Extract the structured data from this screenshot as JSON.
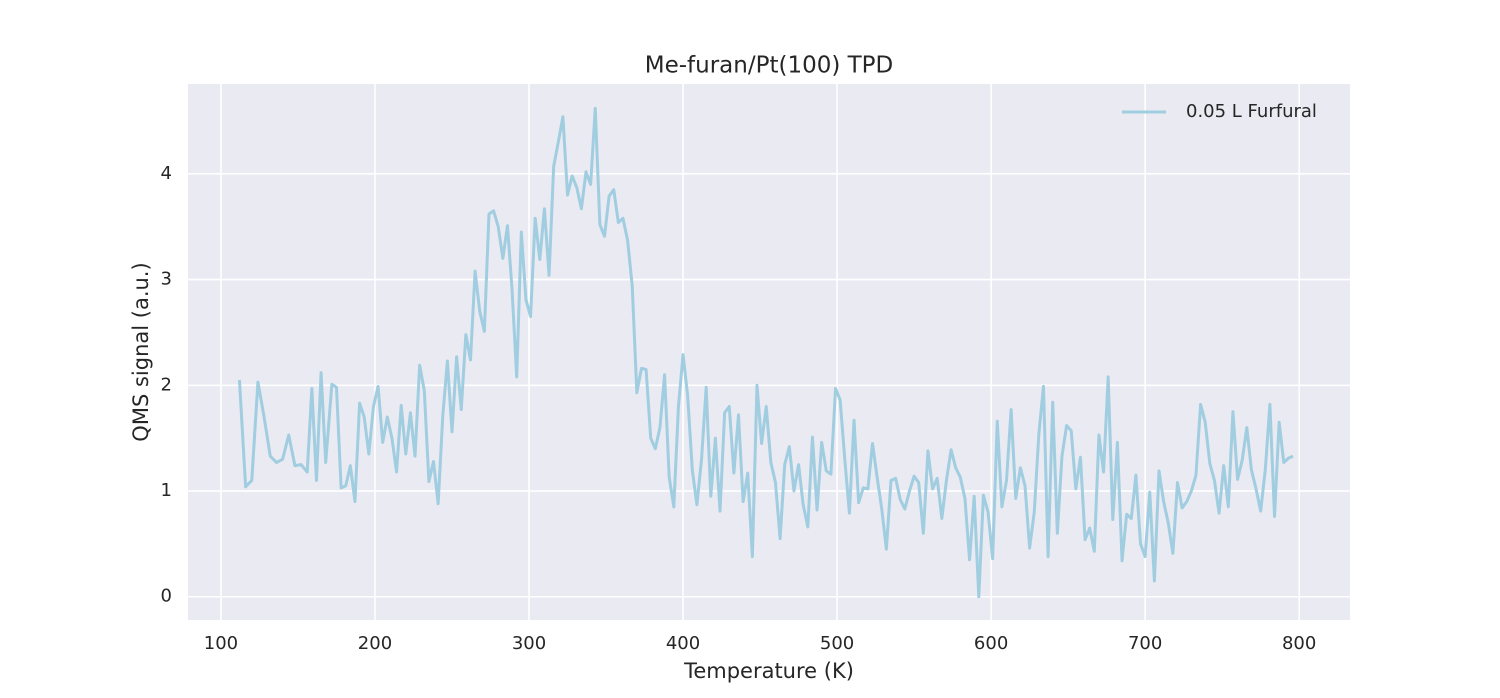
{
  "chart_data": {
    "type": "line",
    "title": "Me-furan/Pt(100) TPD",
    "xlabel": "Temperature (K)",
    "ylabel": "QMS signal (a.u.)",
    "x": [
      112,
      116,
      120,
      124,
      128,
      132,
      136,
      140,
      144,
      148,
      152,
      156,
      159,
      162,
      165,
      168,
      172,
      175,
      178,
      181,
      184,
      187,
      190,
      193,
      196,
      199,
      202,
      205,
      208,
      211,
      214,
      217,
      220,
      223,
      226,
      229,
      232,
      235,
      238,
      241,
      244,
      247,
      250,
      253,
      256,
      259,
      262,
      265,
      268,
      271,
      274,
      277,
      280,
      283,
      286,
      289,
      292,
      295,
      298,
      301,
      304,
      307,
      310,
      313,
      316,
      319,
      322,
      325,
      328,
      331,
      334,
      337,
      340,
      343,
      346,
      349,
      352,
      355,
      358,
      361,
      364,
      367,
      370,
      373,
      376,
      379,
      382,
      385,
      388,
      391,
      394,
      397,
      400,
      403,
      406,
      409,
      412,
      415,
      418,
      421,
      424,
      427,
      430,
      433,
      436,
      439,
      442,
      445,
      448,
      451,
      454,
      457,
      460,
      463,
      466,
      469,
      472,
      475,
      478,
      481,
      484,
      487,
      490,
      493,
      496,
      499,
      502,
      505,
      508,
      511,
      514,
      517,
      520,
      523,
      526,
      529,
      532,
      535,
      538,
      541,
      544,
      547,
      550,
      553,
      556,
      559,
      562,
      565,
      568,
      571,
      574,
      577,
      580,
      583,
      586,
      589,
      592,
      595,
      598,
      601,
      604,
      607,
      610,
      613,
      616,
      619,
      622,
      625,
      628,
      631,
      634,
      637,
      640,
      643,
      646,
      649,
      652,
      655,
      658,
      661,
      664,
      667,
      670,
      673,
      676,
      679,
      682,
      685,
      688,
      691,
      694,
      697,
      700,
      703,
      706,
      709,
      712,
      715,
      718,
      721,
      724,
      727,
      730,
      733,
      736,
      739,
      742,
      745,
      748,
      751,
      754,
      757,
      760,
      763,
      766,
      769,
      772,
      775,
      778,
      781,
      784,
      787,
      790,
      793,
      796
    ],
    "series": [
      {
        "name": "0.05 L Furfural",
        "color": "#a1cde0",
        "values": [
          2.05,
          1.04,
          1.1,
          2.03,
          1.7,
          1.33,
          1.27,
          1.3,
          1.53,
          1.24,
          1.25,
          1.18,
          1.97,
          1.1,
          2.12,
          1.27,
          2.01,
          1.98,
          1.03,
          1.05,
          1.24,
          0.9,
          1.83,
          1.7,
          1.35,
          1.8,
          1.99,
          1.46,
          1.7,
          1.5,
          1.18,
          1.81,
          1.35,
          1.74,
          1.33,
          2.19,
          1.95,
          1.09,
          1.28,
          0.88,
          1.71,
          2.23,
          1.56,
          2.27,
          1.77,
          2.48,
          2.24,
          3.08,
          2.7,
          2.51,
          3.62,
          3.65,
          3.5,
          3.2,
          3.51,
          2.9,
          2.08,
          3.45,
          2.81,
          2.65,
          3.58,
          3.19,
          3.67,
          3.04,
          4.07,
          4.3,
          4.54,
          3.8,
          3.98,
          3.87,
          3.67,
          4.02,
          3.9,
          4.62,
          3.52,
          3.41,
          3.79,
          3.85,
          3.54,
          3.58,
          3.37,
          2.94,
          1.93,
          2.16,
          2.15,
          1.5,
          1.4,
          1.6,
          2.1,
          1.13,
          0.85,
          1.8,
          2.29,
          1.9,
          1.2,
          0.87,
          1.3,
          1.98,
          0.95,
          1.5,
          0.81,
          1.74,
          1.8,
          1.17,
          1.72,
          0.9,
          1.17,
          0.38,
          2.0,
          1.45,
          1.8,
          1.27,
          1.08,
          0.55,
          1.25,
          1.42,
          1.0,
          1.25,
          0.87,
          0.66,
          1.51,
          0.82,
          1.46,
          1.19,
          1.16,
          1.97,
          1.86,
          1.3,
          0.79,
          1.67,
          0.89,
          1.03,
          1.02,
          1.45,
          1.13,
          0.83,
          0.45,
          1.1,
          1.12,
          0.92,
          0.83,
          1.0,
          1.14,
          1.08,
          0.6,
          1.38,
          1.02,
          1.12,
          0.74,
          1.1,
          1.39,
          1.22,
          1.13,
          0.93,
          0.35,
          0.95,
          0.0,
          0.96,
          0.8,
          0.36,
          1.66,
          0.85,
          1.1,
          1.77,
          0.93,
          1.22,
          1.05,
          0.46,
          0.8,
          1.54,
          1.99,
          0.38,
          1.84,
          0.6,
          1.33,
          1.62,
          1.57,
          1.02,
          1.32,
          0.54,
          0.65,
          0.43,
          1.53,
          1.18,
          2.08,
          0.73,
          1.46,
          0.34,
          0.78,
          0.74,
          1.15,
          0.5,
          0.38,
          0.99,
          0.15,
          1.19,
          0.9,
          0.7,
          0.41,
          1.08,
          0.84,
          0.9,
          1.0,
          1.15,
          1.82,
          1.65,
          1.26,
          1.1,
          0.79,
          1.24,
          0.85,
          1.75,
          1.11,
          1.29,
          1.6,
          1.2,
          1.02,
          0.81,
          1.2,
          1.82,
          0.76,
          1.65,
          1.27,
          1.31,
          1.33
        ]
      }
    ],
    "xlim": [
      78.6,
      833
    ],
    "ylim": [
      -0.22,
      4.85
    ],
    "xticks": [
      100,
      200,
      300,
      400,
      500,
      600,
      700,
      800
    ],
    "yticks": [
      0,
      1,
      2,
      3,
      4
    ],
    "grid": true,
    "legend": "upper right"
  }
}
